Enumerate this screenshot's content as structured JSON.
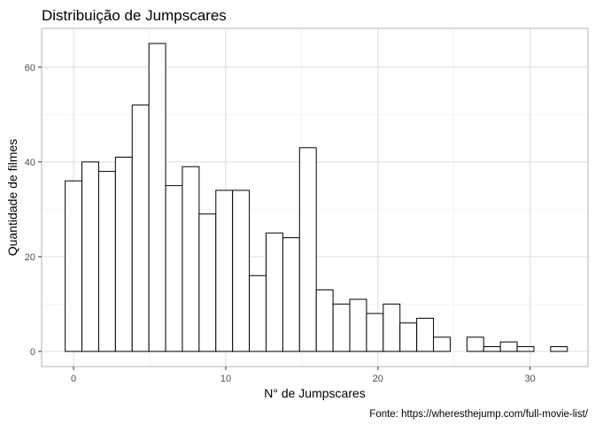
{
  "chart_data": {
    "type": "bar",
    "title": "Distribuição de Jumpscares",
    "xlabel": "N° de Jumpscares",
    "ylabel": "Quantidade de filmes",
    "caption": "Fonte: https://wheresthejump.com/full-movie-list/",
    "x_ticks": [
      0,
      10,
      20,
      30
    ],
    "x_tick_labels": [
      "0",
      "10",
      "20",
      "30"
    ],
    "y_ticks": [
      0,
      20,
      40,
      60
    ],
    "y_tick_labels": [
      "0",
      "20",
      "40",
      "60"
    ],
    "xlim": [
      -2.1,
      33.8
    ],
    "ylim": [
      -3.2,
      68.2
    ],
    "bin_width": 1.1,
    "bin_centers": [
      0.0,
      1.1,
      2.2,
      3.3,
      4.4,
      5.5,
      6.6,
      7.7,
      8.8,
      9.9,
      11.0,
      12.1,
      13.2,
      14.3,
      15.4,
      16.5,
      17.6,
      18.7,
      19.8,
      20.9,
      22.0,
      23.1,
      24.2,
      25.3,
      26.4,
      27.5,
      28.6,
      29.7,
      30.8,
      31.9
    ],
    "values": [
      36,
      40,
      38,
      41,
      52,
      65,
      35,
      39,
      29,
      34,
      34,
      16,
      25,
      24,
      43,
      13,
      10,
      11,
      8,
      10,
      6,
      7,
      3,
      0,
      3,
      1,
      2,
      1,
      0,
      1
    ],
    "bar_fill": "#ffffff",
    "bar_stroke": "#000000",
    "grid": true,
    "grid_color": "#ebebeb",
    "panel_border_color": "#b3b3b3",
    "legend": "none"
  }
}
